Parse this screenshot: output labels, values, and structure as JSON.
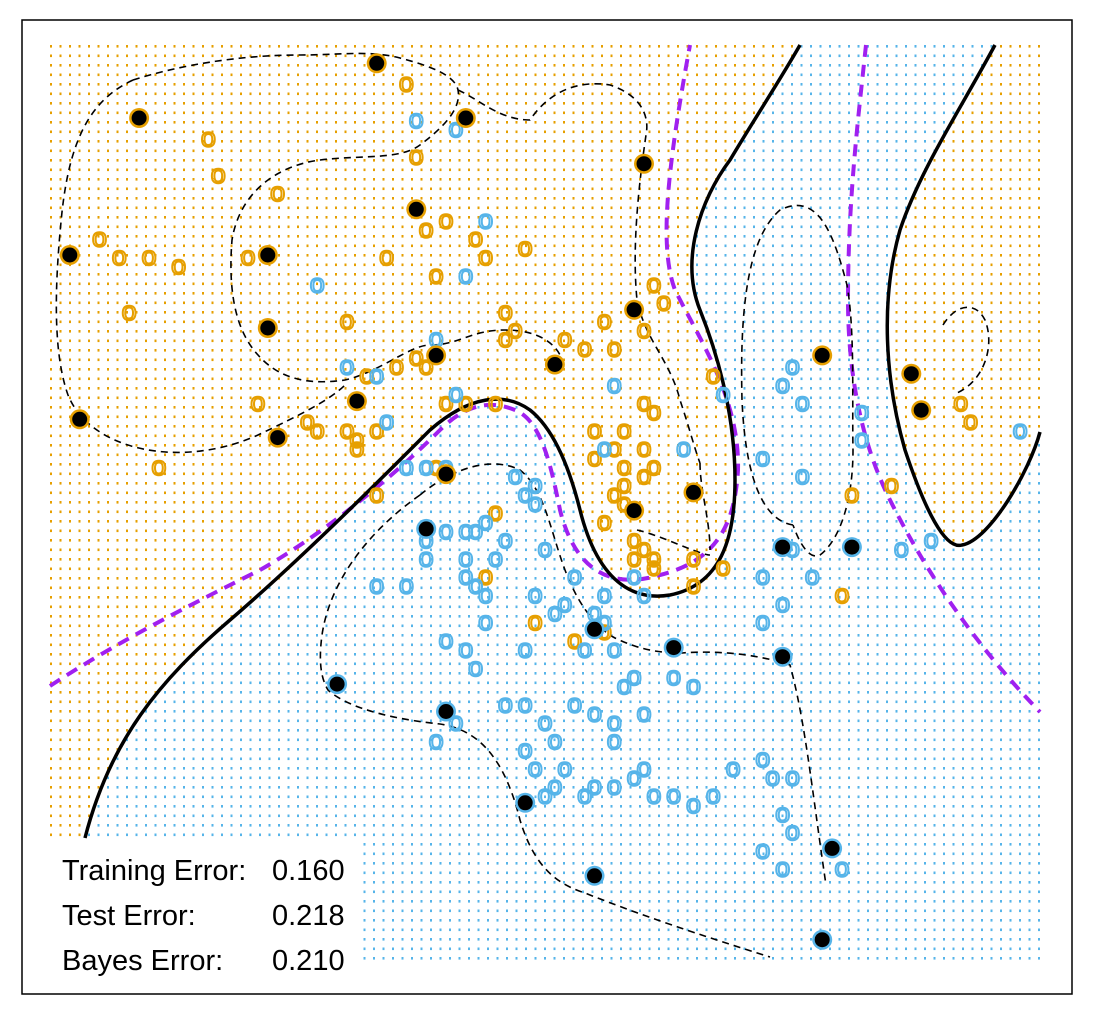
{
  "colors": {
    "class_orange": "#E69F00",
    "class_blue": "#56B4E9",
    "bayes_boundary": "#A020F0",
    "model_boundary": "#000000",
    "support_vector": "#000000",
    "frame": "#000000"
  },
  "chart_data": {
    "type": "scatter",
    "title": "",
    "xlabel": "",
    "ylabel": "",
    "xlim": [
      0,
      100
    ],
    "ylim": [
      0,
      100
    ],
    "axes_shown": false,
    "grid": false,
    "point_symbol": "o",
    "background": "dotted grid of predicted class colour (orange region / blue region)",
    "stats": [
      {
        "label": "Training Error:",
        "value": "0.160"
      },
      {
        "label": "Test Error:",
        "value": "0.218"
      },
      {
        "label": "Bayes Error:",
        "value": "0.210"
      }
    ],
    "series": [
      {
        "class": "orange",
        "points": [
          [
            36,
            96
          ],
          [
            16,
            90
          ],
          [
            17,
            86
          ],
          [
            37,
            88
          ],
          [
            23,
            84
          ],
          [
            38,
            80
          ],
          [
            40,
            81
          ],
          [
            43,
            79
          ],
          [
            48,
            78
          ],
          [
            5,
            79
          ],
          [
            7,
            77
          ],
          [
            10,
            77
          ],
          [
            13,
            76
          ],
          [
            20,
            77
          ],
          [
            34,
            77
          ],
          [
            44,
            77
          ],
          [
            39,
            75
          ],
          [
            61,
            74
          ],
          [
            62,
            72
          ],
          [
            8,
            71
          ],
          [
            30,
            70
          ],
          [
            46,
            71
          ],
          [
            47,
            69
          ],
          [
            56,
            70
          ],
          [
            60,
            69
          ],
          [
            46,
            68
          ],
          [
            52,
            68
          ],
          [
            54,
            67
          ],
          [
            57,
            67
          ],
          [
            35,
            65
          ],
          [
            37,
            66
          ],
          [
            38,
            65
          ],
          [
            32,
            64
          ],
          [
            67,
            64
          ],
          [
            21,
            61
          ],
          [
            40,
            61
          ],
          [
            42,
            61
          ],
          [
            45,
            61
          ],
          [
            60,
            61
          ],
          [
            61,
            60
          ],
          [
            26,
            59
          ],
          [
            27,
            58
          ],
          [
            30,
            58
          ],
          [
            33,
            58
          ],
          [
            31,
            57
          ],
          [
            55,
            58
          ],
          [
            58,
            58
          ],
          [
            60,
            56
          ],
          [
            31,
            56
          ],
          [
            57,
            56
          ],
          [
            58,
            54
          ],
          [
            60,
            53
          ],
          [
            61,
            54
          ],
          [
            55,
            55
          ],
          [
            57,
            51
          ],
          [
            58,
            52
          ],
          [
            58,
            50
          ],
          [
            39,
            54
          ],
          [
            11,
            54
          ],
          [
            33,
            51
          ],
          [
            45,
            49
          ],
          [
            56,
            48
          ],
          [
            59,
            46
          ],
          [
            59,
            44
          ],
          [
            61,
            44
          ],
          [
            60,
            45
          ],
          [
            61,
            43
          ],
          [
            65,
            44
          ],
          [
            68,
            43
          ],
          [
            85,
            52
          ],
          [
            92,
            61
          ],
          [
            93,
            59
          ],
          [
            81,
            51
          ],
          [
            65,
            41
          ],
          [
            44,
            42
          ],
          [
            80,
            40
          ],
          [
            49,
            37
          ],
          [
            56,
            36
          ],
          [
            53,
            35
          ]
        ]
      },
      {
        "class": "blue",
        "points": [
          [
            37,
            92
          ],
          [
            41,
            91
          ],
          [
            42,
            75
          ],
          [
            44,
            81
          ],
          [
            27,
            74
          ],
          [
            39,
            68
          ],
          [
            30,
            65
          ],
          [
            33,
            64
          ],
          [
            41,
            62
          ],
          [
            34,
            59
          ],
          [
            57,
            63
          ],
          [
            56,
            56
          ],
          [
            64,
            56
          ],
          [
            68,
            62
          ],
          [
            75,
            65
          ],
          [
            74,
            63
          ],
          [
            76,
            61
          ],
          [
            82,
            60
          ],
          [
            72,
            55
          ],
          [
            76,
            53
          ],
          [
            36,
            54
          ],
          [
            38,
            54
          ],
          [
            40,
            54
          ],
          [
            47,
            53
          ],
          [
            49,
            52
          ],
          [
            48,
            51
          ],
          [
            49,
            50
          ],
          [
            40,
            47
          ],
          [
            42,
            47
          ],
          [
            43,
            47
          ],
          [
            38,
            46
          ],
          [
            44,
            48
          ],
          [
            46,
            46
          ],
          [
            42,
            44
          ],
          [
            38,
            44
          ],
          [
            45,
            44
          ],
          [
            50,
            45
          ],
          [
            42,
            42
          ],
          [
            43,
            41
          ],
          [
            44,
            40
          ],
          [
            49,
            40
          ],
          [
            53,
            42
          ],
          [
            59,
            42
          ],
          [
            60,
            40
          ],
          [
            51,
            38
          ],
          [
            55,
            38
          ],
          [
            56,
            40
          ],
          [
            52,
            39
          ],
          [
            56,
            37
          ],
          [
            57,
            34
          ],
          [
            54,
            34
          ],
          [
            44,
            37
          ],
          [
            42,
            34
          ],
          [
            48,
            34
          ],
          [
            43,
            32
          ],
          [
            33,
            41
          ],
          [
            36,
            41
          ],
          [
            58,
            30
          ],
          [
            65,
            30
          ],
          [
            72,
            37
          ],
          [
            59,
            31
          ],
          [
            63,
            31
          ],
          [
            40,
            35
          ],
          [
            53,
            28
          ],
          [
            55,
            27
          ],
          [
            57,
            24
          ],
          [
            57,
            26
          ],
          [
            60,
            27
          ],
          [
            48,
            23
          ],
          [
            49,
            21
          ],
          [
            48,
            28
          ],
          [
            46,
            28
          ],
          [
            39,
            24
          ],
          [
            41,
            26
          ],
          [
            50,
            26
          ],
          [
            51,
            24
          ],
          [
            51,
            19
          ],
          [
            50,
            18
          ],
          [
            54,
            18
          ],
          [
            55,
            19
          ],
          [
            57,
            19
          ],
          [
            52,
            21
          ],
          [
            59,
            20
          ],
          [
            60,
            21
          ],
          [
            61,
            18
          ],
          [
            63,
            18
          ],
          [
            65,
            17
          ],
          [
            67,
            18
          ],
          [
            69,
            21
          ],
          [
            72,
            22
          ],
          [
            73,
            20
          ],
          [
            75,
            20
          ],
          [
            74,
            16
          ],
          [
            75,
            14
          ],
          [
            72,
            12
          ],
          [
            74,
            10
          ],
          [
            80,
            10
          ],
          [
            82,
            57
          ],
          [
            89,
            46
          ],
          [
            98,
            58
          ],
          [
            86,
            45
          ],
          [
            72,
            42
          ],
          [
            74,
            39
          ],
          [
            77,
            42
          ],
          [
            75,
            45
          ]
        ]
      },
      {
        "class": "support-vector",
        "points": [
          [
            33,
            98
          ],
          [
            9,
            92
          ],
          [
            42,
            92
          ],
          [
            60,
            87
          ],
          [
            37,
            82
          ],
          [
            2,
            77
          ],
          [
            22,
            77
          ],
          [
            22,
            69
          ],
          [
            39,
            66
          ],
          [
            51,
            65
          ],
          [
            59,
            71
          ],
          [
            3,
            59
          ],
          [
            23,
            57
          ],
          [
            31,
            61
          ],
          [
            40,
            53
          ],
          [
            38,
            47
          ],
          [
            59,
            49
          ],
          [
            65,
            51
          ],
          [
            74,
            45
          ],
          [
            78,
            66
          ],
          [
            87,
            64
          ],
          [
            88,
            60
          ],
          [
            81,
            45
          ],
          [
            55,
            36
          ],
          [
            63,
            34
          ],
          [
            74,
            33
          ],
          [
            29,
            30
          ],
          [
            40,
            27
          ],
          [
            48,
            17
          ],
          [
            55,
            9
          ],
          [
            79,
            12
          ],
          [
            78,
            2
          ]
        ]
      }
    ]
  }
}
